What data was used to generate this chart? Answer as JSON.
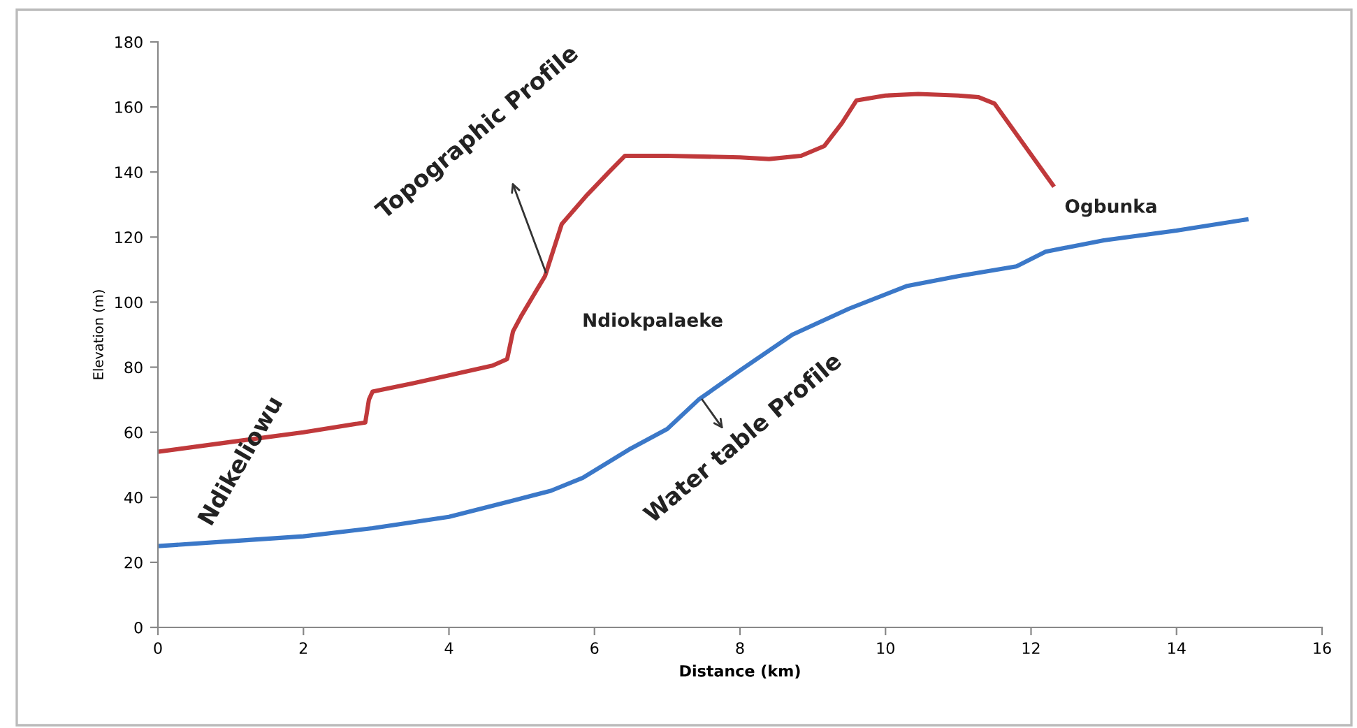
{
  "chart_data": {
    "type": "line",
    "xlabel": "Distance (km)",
    "ylabel": "Elevation (m)",
    "xlim": [
      0,
      16
    ],
    "xticks": [
      0,
      2,
      4,
      6,
      8,
      10,
      12,
      14,
      16
    ],
    "ylim": [
      0,
      180
    ],
    "yticks": [
      0,
      20,
      40,
      60,
      80,
      100,
      120,
      140,
      160,
      180
    ],
    "grid": false,
    "legend": false,
    "marker": "none",
    "line_style": "solid",
    "series": [
      {
        "color": "#c0393b",
        "x": [
          0,
          1,
          2,
          2.85,
          2.9,
          2.95,
          3.5,
          4,
          4.6,
          4.8,
          4.88,
          5.0,
          5.32,
          5.55,
          5.9,
          6.2,
          6.42,
          7,
          8,
          8.4,
          8.84,
          9.16,
          9.4,
          9.6,
          10,
          10.45,
          11,
          11.28,
          11.5,
          12.3
        ],
        "values": [
          54,
          57,
          60,
          63,
          70,
          72.5,
          75,
          77.5,
          80.5,
          82.5,
          91,
          96,
          108,
          124,
          133,
          140,
          145,
          145,
          144.5,
          144,
          145,
          148,
          155,
          162,
          163.5,
          164,
          163.5,
          163,
          161,
          136
        ]
      },
      {
        "color": "#3b78c8",
        "x": [
          0,
          1,
          2,
          2.95,
          4,
          4.88,
          5.4,
          5.84,
          6.5,
          7,
          7.43,
          8,
          8.72,
          9.5,
          10.3,
          11,
          11.8,
          12.2,
          13,
          14,
          14.96
        ],
        "values": [
          25,
          26.5,
          28,
          30.5,
          34,
          39,
          42,
          46,
          55,
          61,
          70,
          79,
          90,
          98,
          105,
          108,
          111,
          115.5,
          119,
          122,
          125.4
        ]
      }
    ],
    "annotations": [
      {
        "text": "Topographic Profile",
        "x": 5.35,
        "y": 108
      },
      {
        "text": "Water table Profile",
        "x": 7.45,
        "y": 71
      },
      {
        "text": "Ndikeliowu",
        "x": 1,
        "y": 57
      },
      {
        "text": "Ndiokpalaeke",
        "x": 5.3,
        "y": 108
      },
      {
        "text": "Ogbunka",
        "x": 12.3,
        "y": 136
      }
    ]
  }
}
